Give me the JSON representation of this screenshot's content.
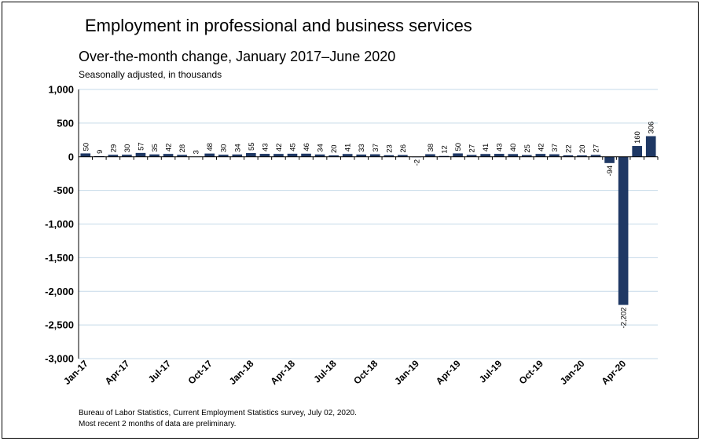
{
  "chart_data": {
    "type": "bar",
    "title": "Employment in professional and business services",
    "subtitle": "Over-the-month change, January 2017–June 2020",
    "units_note": "Seasonally adjusted, in thousands",
    "xlabel": "",
    "ylabel": "",
    "ylim": [
      -3000,
      1000
    ],
    "yticks": [
      1000,
      500,
      0,
      -500,
      -1000,
      -1500,
      -2000,
      -2500,
      -3000
    ],
    "ytick_labels": [
      "1,000",
      "500",
      "0",
      "-500",
      "-1,000",
      "-1,500",
      "-2,000",
      "-2,500",
      "-3,000"
    ],
    "grid": true,
    "bar_color": "#1f3864",
    "grid_color": "#c5d9e8",
    "categories": [
      "Jan-17",
      "Feb-17",
      "Mar-17",
      "Apr-17",
      "May-17",
      "Jun-17",
      "Jul-17",
      "Aug-17",
      "Sep-17",
      "Oct-17",
      "Nov-17",
      "Dec-17",
      "Jan-18",
      "Feb-18",
      "Mar-18",
      "Apr-18",
      "May-18",
      "Jun-18",
      "Jul-18",
      "Aug-18",
      "Sep-18",
      "Oct-18",
      "Nov-18",
      "Dec-18",
      "Jan-19",
      "Feb-19",
      "Mar-19",
      "Apr-19",
      "May-19",
      "Jun-19",
      "Jul-19",
      "Aug-19",
      "Sep-19",
      "Oct-19",
      "Nov-19",
      "Dec-19",
      "Jan-20",
      "Feb-20",
      "Mar-20",
      "Apr-20",
      "May-20",
      "Jun-20"
    ],
    "values": [
      50,
      9,
      29,
      30,
      57,
      35,
      42,
      28,
      3,
      48,
      30,
      34,
      55,
      43,
      42,
      45,
      46,
      34,
      20,
      41,
      33,
      37,
      23,
      26,
      -2,
      38,
      12,
      50,
      27,
      41,
      43,
      40,
      25,
      42,
      37,
      22,
      20,
      27,
      -94,
      -2202,
      160,
      306
    ],
    "data_labels": [
      "50",
      "9",
      "29",
      "30",
      "57",
      "35",
      "42",
      "28",
      "3",
      "48",
      "30",
      "34",
      "55",
      "43",
      "42",
      "45",
      "46",
      "34",
      "20",
      "41",
      "33",
      "37",
      "23",
      "26",
      "-2",
      "38",
      "12",
      "50",
      "27",
      "41",
      "43",
      "40",
      "25",
      "42",
      "37",
      "22",
      "20",
      "27",
      "-94",
      "-2,202",
      "160",
      "306"
    ],
    "x_tick_labels": [
      {
        "index": 0,
        "label": "Jan-17"
      },
      {
        "index": 3,
        "label": "Apr-17"
      },
      {
        "index": 6,
        "label": "Jul-17"
      },
      {
        "index": 9,
        "label": "Oct-17"
      },
      {
        "index": 12,
        "label": "Jan-18"
      },
      {
        "index": 15,
        "label": "Apr-18"
      },
      {
        "index": 18,
        "label": "Jul-18"
      },
      {
        "index": 21,
        "label": "Oct-18"
      },
      {
        "index": 24,
        "label": "Jan-19"
      },
      {
        "index": 27,
        "label": "Apr-19"
      },
      {
        "index": 30,
        "label": "Jul-19"
      },
      {
        "index": 33,
        "label": "Oct-19"
      },
      {
        "index": 36,
        "label": "Jan-20"
      },
      {
        "index": 39,
        "label": "Apr-20"
      }
    ],
    "source": "Bureau of Labor Statistics, Current Employment Statistics survey, July 02, 2020.",
    "note": "Most recent 2 months of data are preliminary."
  }
}
